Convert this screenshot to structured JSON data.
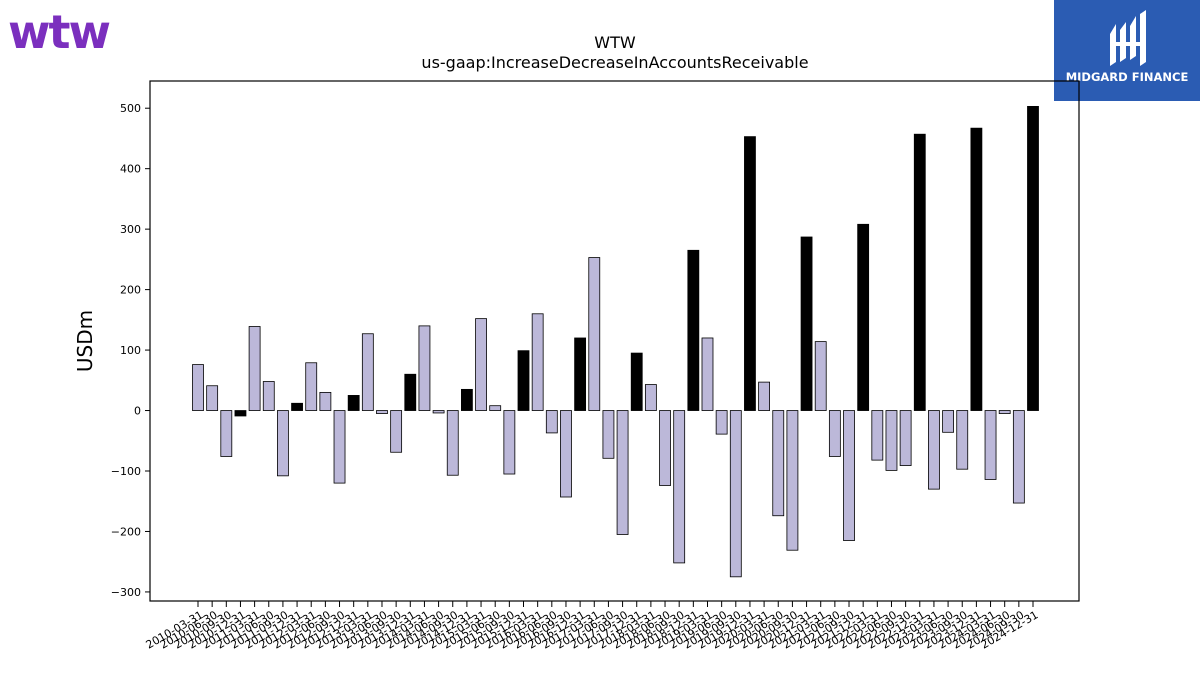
{
  "logos": {
    "left": {
      "text": "wtw",
      "color": "#7b2fbe"
    },
    "right": {
      "text": "MIDGARD FINANCE",
      "background": "#2b5cb3",
      "icon": "midgard-monogram-icon"
    }
  },
  "chart_data": {
    "type": "bar",
    "title": "WTW",
    "subtitle": "us-gaap:IncreaseDecreaseInAccountsReceivable",
    "xlabel": "",
    "ylabel": "USDm",
    "ylim": [
      -315,
      545
    ],
    "yticks": [
      -300,
      -200,
      -100,
      0,
      100,
      200,
      300,
      400,
      500
    ],
    "grid": false,
    "colors": {
      "quarterly": "#bcb8d9",
      "annual": "#000000"
    },
    "categories": [
      "2010-03-31",
      "2010-06-30",
      "2010-09-30",
      "2010-12-31",
      "2011-03-31",
      "2011-06-30",
      "2011-09-30",
      "2011-12-31",
      "2012-03-31",
      "2012-06-30",
      "2012-09-30",
      "2012-12-31",
      "2013-03-31",
      "2013-06-30",
      "2013-09-30",
      "2013-12-31",
      "2014-03-31",
      "2014-06-30",
      "2014-09-30",
      "2014-12-31",
      "2015-03-31",
      "2015-06-30",
      "2015-09-30",
      "2015-12-31",
      "2016-03-31",
      "2016-06-30",
      "2016-09-30",
      "2016-12-31",
      "2017-03-31",
      "2017-06-30",
      "2017-09-30",
      "2017-12-31",
      "2018-03-31",
      "2018-06-30",
      "2018-09-30",
      "2018-12-31",
      "2019-03-31",
      "2019-06-30",
      "2019-09-30",
      "2019-12-31",
      "2020-03-31",
      "2020-06-30",
      "2020-09-30",
      "2020-12-31",
      "2021-03-31",
      "2021-06-30",
      "2021-09-30",
      "2021-12-31",
      "2022-03-31",
      "2022-06-30",
      "2022-09-30",
      "2022-12-31",
      "2023-03-31",
      "2023-06-30",
      "2023-09-30",
      "2023-12-31",
      "2024-03-31",
      "2024-06-30",
      "2024-09-30",
      "2024-12-31"
    ],
    "values": [
      76,
      41,
      -76,
      -9,
      139,
      48,
      -108,
      12,
      79,
      30,
      -120,
      25,
      127,
      -5,
      -69,
      60,
      140,
      -4,
      -107,
      35,
      152,
      8,
      -105,
      99,
      160,
      -37,
      -143,
      120,
      253,
      -79,
      -205,
      95,
      43,
      -124,
      -252,
      265,
      120,
      -39,
      -275,
      453,
      47,
      -174,
      -231,
      287,
      114,
      -76,
      -215,
      308,
      -82,
      -99,
      -91,
      457,
      -130,
      -36,
      -97,
      467,
      -114,
      -5,
      -153,
      503
    ],
    "annual": [
      false,
      false,
      false,
      true,
      false,
      false,
      false,
      true,
      false,
      false,
      false,
      true,
      false,
      false,
      false,
      true,
      false,
      false,
      false,
      true,
      false,
      false,
      false,
      true,
      false,
      false,
      false,
      true,
      false,
      false,
      false,
      true,
      false,
      false,
      false,
      true,
      false,
      false,
      false,
      true,
      false,
      false,
      false,
      true,
      false,
      false,
      false,
      true,
      false,
      false,
      false,
      true,
      false,
      false,
      false,
      true,
      false,
      false,
      false,
      true
    ]
  }
}
